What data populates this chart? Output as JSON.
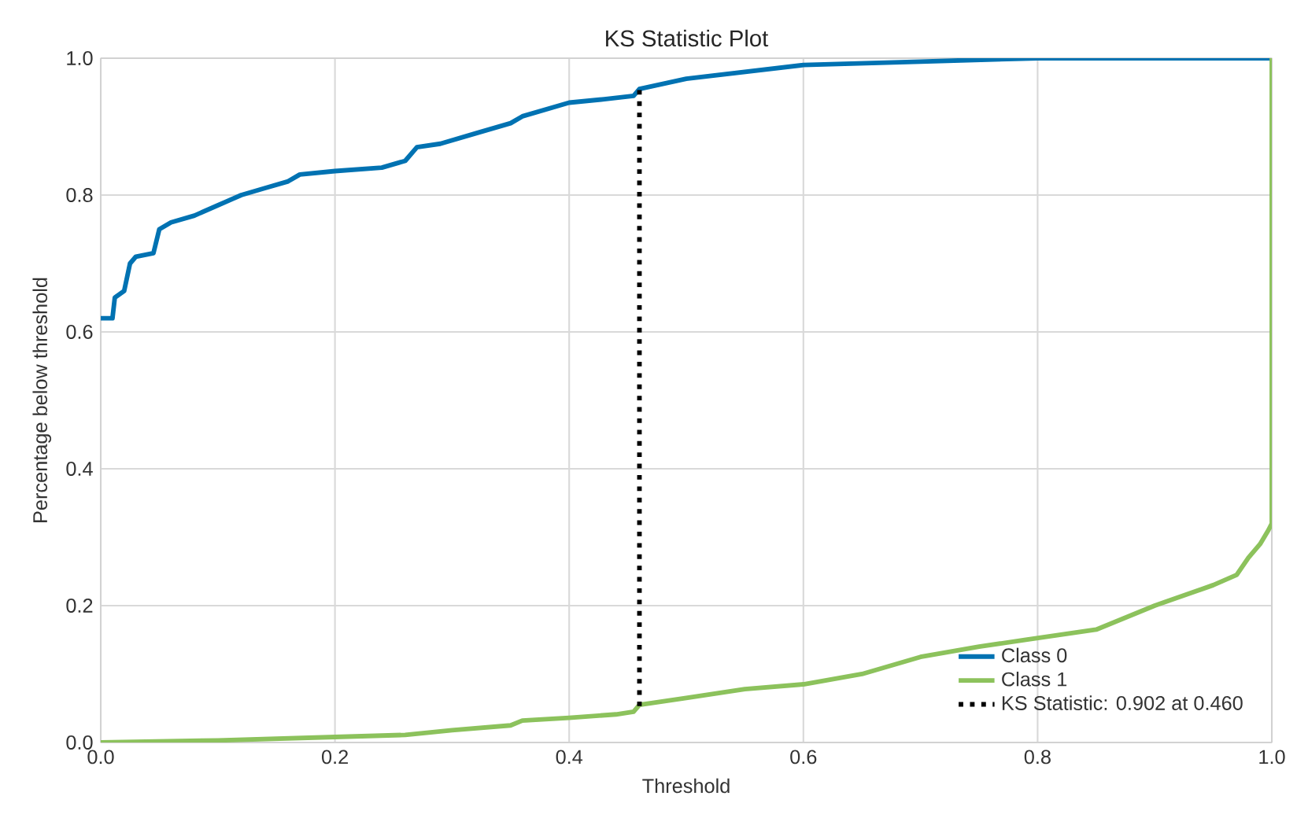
{
  "chart_data": {
    "type": "line",
    "title": "KS Statistic Plot",
    "xlabel": "Threshold",
    "ylabel": "Percentage below threshold",
    "xlim": [
      0,
      1
    ],
    "ylim": [
      0,
      1
    ],
    "xticks": [
      {
        "value": 0,
        "label": "0.0"
      },
      0.2,
      0.4,
      0.6,
      0.8,
      {
        "value": 1,
        "label": "1.0"
      }
    ],
    "yticks": [
      {
        "value": 0,
        "label": "0.0"
      },
      0.2,
      0.4,
      0.6,
      0.8,
      {
        "value": 1,
        "label": "1.0"
      }
    ],
    "grid": true,
    "legend": "bottom right",
    "marker": "none",
    "series": [
      {
        "name": "Class 0",
        "color": "#0072b2",
        "line_style": "solid",
        "x": [
          0,
          0.01,
          0.012,
          0.02,
          0.025,
          0.03,
          0.045,
          0.05,
          0.06,
          0.08,
          0.1,
          0.12,
          0.14,
          0.16,
          0.17,
          0.2,
          0.24,
          0.26,
          0.27,
          0.29,
          0.32,
          0.35,
          0.36,
          0.4,
          0.43,
          0.455,
          0.46,
          0.5,
          0.55,
          0.6,
          0.7,
          0.8,
          1.0
        ],
        "values": [
          0.62,
          0.62,
          0.65,
          0.66,
          0.7,
          0.71,
          0.715,
          0.75,
          0.76,
          0.77,
          0.785,
          0.8,
          0.81,
          0.82,
          0.83,
          0.835,
          0.84,
          0.85,
          0.87,
          0.875,
          0.89,
          0.905,
          0.915,
          0.935,
          0.94,
          0.945,
          0.955,
          0.97,
          0.98,
          0.99,
          0.995,
          1.0,
          1.0
        ]
      },
      {
        "name": "Class 1",
        "color": "#8cc25c",
        "line_style": "solid",
        "x": [
          0,
          0.1,
          0.2,
          0.26,
          0.3,
          0.35,
          0.36,
          0.4,
          0.44,
          0.455,
          0.46,
          0.5,
          0.55,
          0.6,
          0.65,
          0.7,
          0.75,
          0.79,
          0.85,
          0.9,
          0.95,
          0.97,
          0.98,
          0.99,
          0.997,
          1.0,
          1.0
        ],
        "values": [
          0,
          0.003,
          0.008,
          0.011,
          0.018,
          0.025,
          0.032,
          0.036,
          0.041,
          0.045,
          0.055,
          0.065,
          0.078,
          0.085,
          0.1,
          0.125,
          0.14,
          0.15,
          0.165,
          0.2,
          0.23,
          0.245,
          0.27,
          0.29,
          0.31,
          0.32,
          1.0
        ]
      },
      {
        "name": "KS Statistic: 0.902 at 0.460",
        "color": "#000000",
        "line_style": "dotted",
        "x": [
          0.46,
          0.46
        ],
        "values": [
          0.053,
          0.955
        ]
      }
    ]
  }
}
